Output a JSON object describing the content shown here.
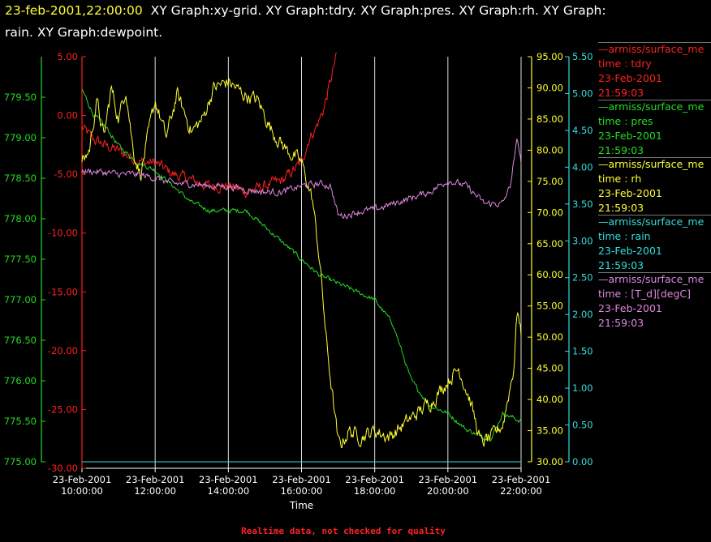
{
  "header": {
    "timestamp": "23-feb-2001,22:00:00",
    "titles_line1": "XY Graph:xy-grid.  XY Graph:tdry.  XY Graph:pres.  XY Graph:rh.  XY Graph:",
    "titles_line2": "rain.  XY Graph:dewpoint."
  },
  "footnote": "Realtime data, not checked for quality",
  "legend": [
    {
      "source": "armiss/surface_me",
      "var": "time : tdry",
      "date": "23-Feb-2001",
      "time": "21:59:03",
      "color": "#ff2020"
    },
    {
      "source": "armiss/surface_me",
      "var": "time : pres",
      "date": "23-Feb-2001",
      "time": "21:59:03",
      "color": "#22dd22"
    },
    {
      "source": "armiss/surface_me",
      "var": "time : rh",
      "date": "23-Feb-2001",
      "time": "21:59:03",
      "color": "#ffff33"
    },
    {
      "source": "armiss/surface_me",
      "var": "time : rain",
      "date": "23-Feb-2001",
      "time": "21:59:03",
      "color": "#33dddd"
    },
    {
      "source": "armiss/surface_me",
      "var": "time : [T_d][degC]",
      "date": "23-Feb-2001",
      "time": "21:59:03",
      "color": "#dd88dd"
    }
  ],
  "chart_data": {
    "type": "line",
    "xlabel": "Time",
    "x_range_hours": [
      10.0,
      22.0
    ],
    "x_ticks": [
      {
        "date": "23-Feb-2001",
        "time": "10:00:00",
        "hour": 10
      },
      {
        "date": "23-Feb-2001",
        "time": "12:00:00",
        "hour": 12
      },
      {
        "date": "23-Feb-2001",
        "time": "14:00:00",
        "hour": 14
      },
      {
        "date": "23-Feb-2001",
        "time": "16:00:00",
        "hour": 16
      },
      {
        "date": "23-Feb-2001",
        "time": "18:00:00",
        "hour": 18
      },
      {
        "date": "23-Feb-2001",
        "time": "20:00:00",
        "hour": 20
      },
      {
        "date": "23-Feb-2001",
        "time": "22:00:00",
        "hour": 22
      }
    ],
    "grid": "vertical",
    "axes": [
      {
        "id": "pres",
        "side": "left",
        "color": "#22dd22",
        "ylim": [
          775.0,
          780.0
        ],
        "ticks": [
          "775.00",
          "775.50",
          "776.00",
          "776.50",
          "777.00",
          "777.50",
          "778.00",
          "778.50",
          "779.00",
          "779.50"
        ]
      },
      {
        "id": "tdry",
        "side": "left",
        "color": "#ff2020",
        "ylim": [
          -30.0,
          5.0
        ],
        "ticks": [
          "-30.00",
          "-25.00",
          "-20.00",
          "-15.00",
          "-10.00",
          "-5.00",
          "0.00",
          "5.00"
        ]
      },
      {
        "id": "rh",
        "side": "right",
        "color": "#ffff33",
        "ylim": [
          30.0,
          95.0
        ],
        "ticks": [
          "30.00",
          "35.00",
          "40.00",
          "45.00",
          "50.00",
          "55.00",
          "60.00",
          "65.00",
          "70.00",
          "75.00",
          "80.00",
          "85.00",
          "90.00",
          "95.00"
        ]
      },
      {
        "id": "rain",
        "side": "right",
        "color": "#33dddd",
        "ylim": [
          0.0,
          5.5
        ],
        "ticks": [
          "0.00",
          "0.50",
          "1.00",
          "1.50",
          "2.00",
          "2.50",
          "3.00",
          "3.50",
          "4.00",
          "4.50",
          "5.00",
          "5.50"
        ]
      }
    ],
    "series": [
      {
        "id": "tdry",
        "axis": "tdry",
        "color": "#ff2020",
        "noise": 0.5,
        "x": [
          10.0,
          10.3,
          10.6,
          11.0,
          11.3,
          11.7,
          12.0,
          12.5,
          13.0,
          13.5,
          14.0,
          14.5,
          15.0,
          15.5,
          16.0,
          16.2,
          16.4,
          16.6,
          16.8,
          16.95
        ],
        "y": [
          -1.0,
          -2.0,
          -2.5,
          -3.0,
          -3.5,
          -4.0,
          -4.0,
          -5.0,
          -5.5,
          -6.0,
          -6.0,
          -6.5,
          -6.0,
          -5.5,
          -4.0,
          -2.0,
          -1.0,
          0.5,
          3.0,
          5.0
        ]
      },
      {
        "id": "pres",
        "axis": "pres",
        "color": "#22dd22",
        "noise": 0.03,
        "x": [
          10.0,
          10.3,
          10.7,
          11.0,
          11.5,
          12.0,
          12.5,
          13.0,
          13.5,
          14.0,
          14.5,
          15.0,
          15.5,
          16.0,
          16.5,
          17.0,
          17.5,
          18.0,
          18.5,
          19.0,
          19.5,
          20.0,
          20.5,
          21.0,
          21.2,
          21.5,
          22.0
        ],
        "y": [
          779.6,
          779.3,
          779.1,
          778.9,
          778.7,
          778.6,
          778.4,
          778.2,
          778.1,
          778.1,
          778.1,
          777.9,
          777.7,
          777.5,
          777.3,
          777.2,
          777.1,
          777.0,
          776.7,
          776.0,
          775.7,
          775.6,
          775.4,
          775.3,
          775.3,
          775.6,
          775.5
        ]
      },
      {
        "id": "rh",
        "axis": "rh",
        "color": "#ffff33",
        "noise": 1.2,
        "x": [
          10.0,
          10.2,
          10.4,
          10.6,
          10.8,
          11.0,
          11.2,
          11.4,
          11.6,
          11.8,
          12.0,
          12.3,
          12.6,
          13.0,
          13.3,
          13.6,
          14.0,
          14.4,
          14.8,
          15.2,
          15.6,
          16.0,
          16.3,
          16.5,
          16.7,
          16.9,
          17.0,
          17.1,
          17.3,
          17.6,
          18.0,
          18.4,
          18.8,
          19.2,
          19.6,
          20.0,
          20.3,
          20.6,
          20.9,
          21.2,
          21.5,
          21.8,
          21.9,
          22.0
        ],
        "y": [
          78,
          80,
          88,
          82,
          90,
          85,
          90,
          80,
          76,
          82,
          88,
          82,
          89,
          83,
          85,
          90,
          91,
          89,
          88,
          83,
          80,
          78,
          72,
          62,
          48,
          38,
          33,
          33,
          35,
          34,
          35,
          34,
          36,
          38,
          40,
          43,
          45,
          40,
          33,
          34,
          36,
          45,
          55,
          50
        ]
      },
      {
        "id": "rain",
        "axis": "rain",
        "color": "#33dddd",
        "noise": 0,
        "x": [
          10.0,
          22.0
        ],
        "y": [
          0.0,
          0.0
        ]
      },
      {
        "id": "dewpoint",
        "axis": "tdry",
        "color": "#dd88dd",
        "noise": 0.3,
        "x": [
          10.0,
          10.5,
          11.0,
          11.5,
          12.0,
          12.5,
          13.0,
          13.5,
          14.0,
          14.5,
          15.0,
          15.5,
          16.0,
          16.5,
          16.8,
          17.0,
          17.2,
          17.5,
          18.0,
          18.5,
          19.0,
          19.5,
          20.0,
          20.5,
          21.0,
          21.5,
          21.7,
          21.9,
          22.0
        ],
        "y": [
          -4.7,
          -4.8,
          -5.0,
          -5.0,
          -5.3,
          -5.8,
          -5.8,
          -6.0,
          -6.0,
          -6.3,
          -6.5,
          -6.5,
          -6.0,
          -5.8,
          -6.0,
          -8.5,
          -8.5,
          -8.2,
          -8.0,
          -7.5,
          -7.0,
          -6.5,
          -5.5,
          -6.0,
          -7.5,
          -7.5,
          -6.0,
          -2.0,
          -4.0
        ]
      }
    ]
  }
}
